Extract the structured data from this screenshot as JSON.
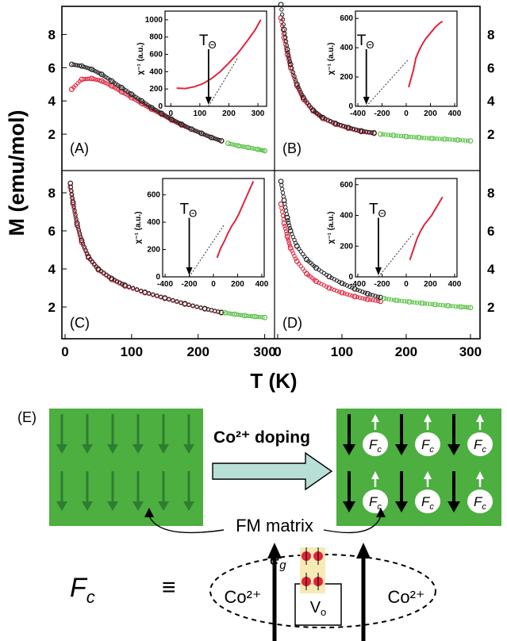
{
  "chart_data": [
    {
      "type": "scatter",
      "panel_label": "(A)",
      "xlim": [
        0,
        310
      ],
      "ylim": [
        0,
        9.5
      ],
      "series": [
        {
          "color": "#e0243d",
          "x": [
            10,
            25,
            40,
            55,
            70,
            85,
            100,
            115,
            130,
            145,
            160,
            175,
            190,
            205,
            220,
            235
          ],
          "y": [
            4.7,
            5.3,
            5.35,
            5.2,
            4.9,
            4.55,
            4.2,
            3.85,
            3.5,
            3.2,
            2.85,
            2.55,
            2.3,
            2.05,
            1.8,
            1.6
          ]
        },
        {
          "color": "#222222",
          "x": [
            10,
            25,
            40,
            55,
            70,
            85,
            100,
            115,
            130,
            145,
            160,
            175,
            190,
            205,
            220,
            235
          ],
          "y": [
            6.2,
            6.1,
            5.9,
            5.6,
            5.2,
            4.8,
            4.4,
            4.0,
            3.6,
            3.25,
            2.9,
            2.6,
            2.3,
            2.05,
            1.8,
            1.6
          ]
        },
        {
          "color": "#5cc24a",
          "x": [
            245,
            260,
            275,
            290,
            300
          ],
          "y": [
            1.45,
            1.3,
            1.2,
            1.08,
            1.0
          ]
        }
      ],
      "inset": {
        "xticks": [
          "0",
          "100",
          "200",
          "300"
        ],
        "yticks": [
          "0",
          "200",
          "400",
          "600",
          "800",
          "1000"
        ],
        "xlim": [
          -20,
          330
        ],
        "ylim": [
          0,
          1100
        ],
        "ylabel": "χ⁻¹ (a.u.)",
        "theta_label": "TΘ",
        "theta_x": 130,
        "curve": {
          "x": [
            20,
            50,
            80,
            110,
            140,
            170,
            200,
            230,
            260,
            290,
            310
          ],
          "y": [
            210,
            205,
            225,
            260,
            320,
            400,
            500,
            610,
            740,
            880,
            1000
          ]
        }
      }
    },
    {
      "type": "scatter",
      "panel_label": "(B)",
      "xlim": [
        0,
        310
      ],
      "ylim": [
        0,
        9.5
      ],
      "series": [
        {
          "color": "#e0243d",
          "x": [
            5,
            10,
            15,
            20,
            30,
            40,
            55,
            70,
            90,
            110,
            130,
            150
          ],
          "y": [
            9.0,
            7.8,
            6.8,
            6.0,
            4.9,
            4.1,
            3.4,
            2.95,
            2.6,
            2.35,
            2.15,
            2.05
          ]
        },
        {
          "color": "#222222",
          "x": [
            5,
            10,
            15,
            20,
            30,
            40,
            55,
            70,
            90,
            110,
            130,
            150
          ],
          "y": [
            9.8,
            8.3,
            7.1,
            6.2,
            5.0,
            4.2,
            3.45,
            3.0,
            2.65,
            2.4,
            2.2,
            2.08
          ]
        },
        {
          "color": "#5cc24a",
          "x": [
            160,
            180,
            200,
            220,
            240,
            260,
            280,
            300
          ],
          "y": [
            2.0,
            1.93,
            1.86,
            1.8,
            1.74,
            1.7,
            1.65,
            1.6
          ]
        }
      ],
      "inset": {
        "xticks": [
          "-400",
          "-200",
          "0",
          "200",
          "400"
        ],
        "yticks": [
          "0",
          "200",
          "400",
          "600"
        ],
        "xlim": [
          -420,
          420
        ],
        "ylim": [
          0,
          650
        ],
        "ylabel": "χ⁻¹ (a.u.)",
        "theta_label": "TΘ",
        "theta_x": -330,
        "curve": {
          "x": [
            20,
            40,
            60,
            80,
            100,
            130,
            160,
            200,
            240,
            280,
            300
          ],
          "y": [
            130,
            190,
            250,
            330,
            370,
            420,
            460,
            500,
            540,
            570,
            580
          ]
        }
      }
    },
    {
      "type": "scatter",
      "panel_label": "(C)",
      "xlim": [
        0,
        310
      ],
      "ylim": [
        0.5,
        9
      ],
      "series": [
        {
          "color": "#e0243d",
          "x": [
            8,
            12,
            18,
            25,
            35,
            50,
            70,
            90,
            120,
            150,
            180,
            210,
            235
          ],
          "y": [
            8.3,
            7.4,
            6.3,
            5.4,
            4.6,
            3.95,
            3.45,
            3.1,
            2.75,
            2.45,
            2.15,
            1.9,
            1.7
          ]
        },
        {
          "color": "#222222",
          "x": [
            8,
            12,
            18,
            25,
            35,
            50,
            70,
            90,
            120,
            150,
            180,
            210,
            235
          ],
          "y": [
            8.5,
            7.5,
            6.4,
            5.5,
            4.65,
            4.0,
            3.5,
            3.15,
            2.78,
            2.48,
            2.18,
            1.92,
            1.72
          ]
        },
        {
          "color": "#5cc24a",
          "x": [
            240,
            255,
            270,
            285,
            300
          ],
          "y": [
            1.7,
            1.62,
            1.55,
            1.5,
            1.45
          ]
        }
      ],
      "inset": {
        "xticks": [
          "-400",
          "-200",
          "0",
          "200",
          "400"
        ],
        "yticks": [
          "0",
          "200",
          "400",
          "600"
        ],
        "xlim": [
          -420,
          420
        ],
        "ylim": [
          0,
          720
        ],
        "ylabel": "χ⁻¹ (a.u.)",
        "theta_label": "TΘ",
        "theta_x": -200,
        "curve": {
          "x": [
            30,
            60,
            90,
            120,
            150,
            180,
            210,
            240,
            270,
            300,
            330
          ],
          "y": [
            140,
            210,
            260,
            320,
            370,
            410,
            460,
            520,
            580,
            640,
            700
          ]
        }
      }
    },
    {
      "type": "scatter",
      "panel_label": "(D)",
      "xlim": [
        0,
        310
      ],
      "ylim": [
        0.5,
        9
      ],
      "series": [
        {
          "color": "#e0243d",
          "x": [
            5,
            10,
            15,
            20,
            30,
            45,
            60,
            80,
            100,
            120,
            140,
            160
          ],
          "y": [
            7.4,
            6.4,
            5.7,
            5.1,
            4.4,
            3.75,
            3.35,
            3.0,
            2.75,
            2.55,
            2.4,
            2.3
          ]
        },
        {
          "color": "#222222",
          "x": [
            5,
            10,
            15,
            20,
            30,
            45,
            60,
            80,
            100,
            120,
            140,
            160
          ],
          "y": [
            8.6,
            7.6,
            6.7,
            6.0,
            5.2,
            4.5,
            4.05,
            3.6,
            3.25,
            2.95,
            2.7,
            2.5
          ]
        },
        {
          "color": "#5cc24a",
          "x": [
            165,
            185,
            205,
            225,
            245,
            265,
            285,
            300
          ],
          "y": [
            2.45,
            2.35,
            2.27,
            2.2,
            2.13,
            2.07,
            2.01,
            1.97
          ]
        }
      ],
      "inset": {
        "xticks": [
          "-400",
          "-200",
          "0",
          "200",
          "400"
        ],
        "yticks": [
          "0",
          "200",
          "400",
          "600"
        ],
        "xlim": [
          -420,
          420
        ],
        "ylim": [
          0,
          640
        ],
        "ylabel": "χ⁻¹ (a.u.)",
        "theta_label": "TΘ",
        "theta_x": -230,
        "curve": {
          "x": [
            30,
            60,
            90,
            120,
            150,
            180,
            210,
            240,
            270,
            300
          ],
          "y": [
            110,
            180,
            250,
            300,
            340,
            370,
            400,
            440,
            480,
            520
          ]
        }
      }
    }
  ],
  "axes": {
    "ylabel": "M (emu/mol)",
    "xlabel": "T (K)",
    "xticks": [
      "0",
      "100",
      "200",
      "300"
    ],
    "yticks_left": [
      "2",
      "4",
      "6",
      "8"
    ],
    "yticks_right": [
      "2",
      "4",
      "6",
      "8"
    ]
  },
  "schematic": {
    "panel_label": "(E)",
    "doping_label": "Co²⁺ doping",
    "matrix_label": "FM matrix",
    "fc_label": "Fc",
    "eg_label": "eg",
    "equiv": "≡",
    "co_left": "Co²⁺",
    "co_right": "Co²⁺",
    "vo_label": "Vo",
    "colors": {
      "matrix_green": "#4caf3f",
      "arrow_green": "#2e7d32",
      "doping_arrow": "#b8dfd6",
      "red_ion": "#e0243d"
    }
  }
}
